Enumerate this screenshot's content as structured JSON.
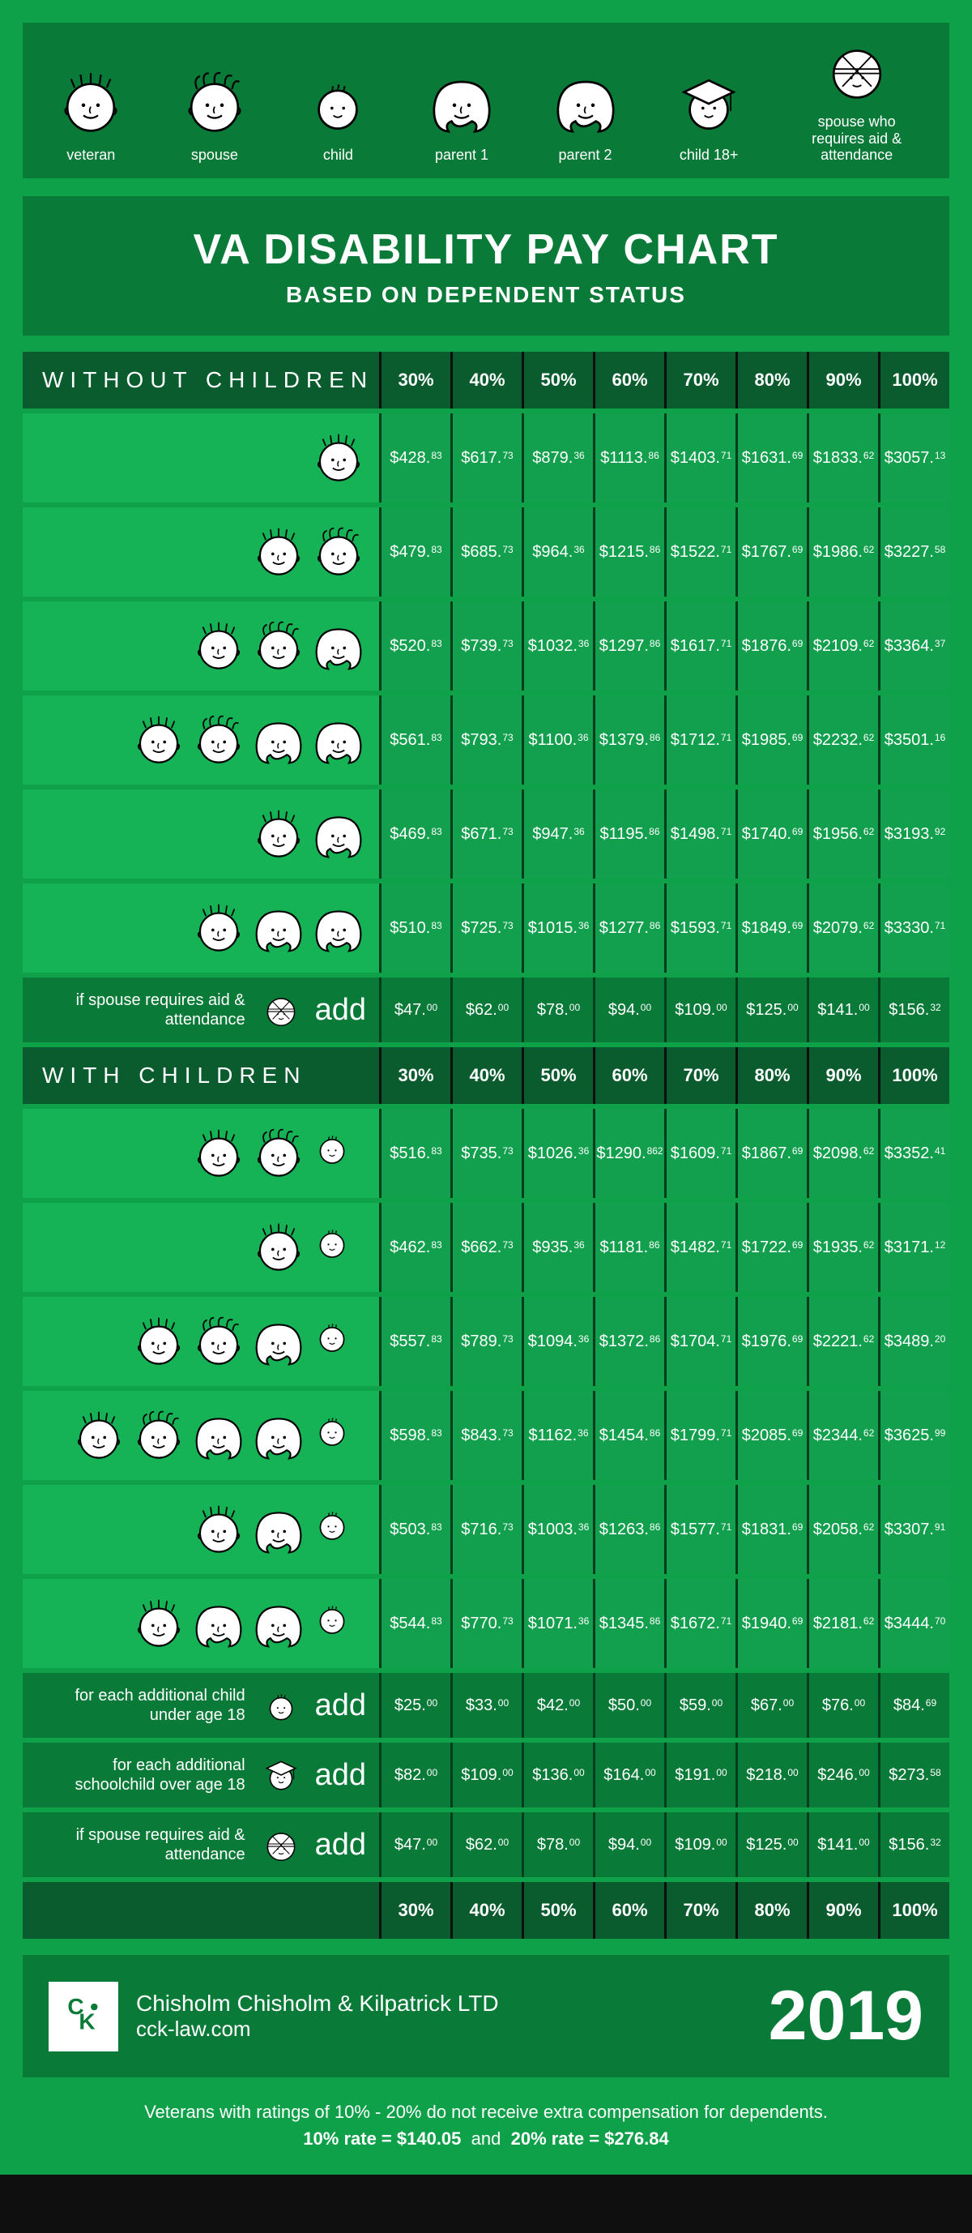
{
  "colors": {
    "page_bg": "#0fa14a",
    "dark_band": "#0a7a38",
    "header_dark": "#0a5c2e",
    "cell_bg": "#12a04e",
    "row_bg": "#16b256",
    "cell_sep": "#033d1c",
    "text": "#ffffff"
  },
  "legend": [
    {
      "key": "veteran",
      "label": "veteran"
    },
    {
      "key": "spouse",
      "label": "spouse"
    },
    {
      "key": "child",
      "label": "child"
    },
    {
      "key": "parent1",
      "label": "parent 1"
    },
    {
      "key": "parent2",
      "label": "parent 2"
    },
    {
      "key": "child18",
      "label": "child 18+"
    },
    {
      "key": "spouse_aa",
      "label": "spouse who requires aid & attendance"
    }
  ],
  "title": "VA DISABILITY PAY CHART",
  "subtitle": "BASED ON DEPENDENT STATUS",
  "percent_labels": [
    "30%",
    "40%",
    "50%",
    "60%",
    "70%",
    "80%",
    "90%",
    "100%"
  ],
  "sections": {
    "without": {
      "heading": "WITHOUT CHILDREN",
      "rows": [
        {
          "faces": [
            "veteran"
          ],
          "values": [
            [
              "428",
              "83"
            ],
            [
              "617",
              "73"
            ],
            [
              "879",
              "36"
            ],
            [
              "1113",
              "86"
            ],
            [
              "1403",
              "71"
            ],
            [
              "1631",
              "69"
            ],
            [
              "1833",
              "62"
            ],
            [
              "3057",
              "13"
            ]
          ]
        },
        {
          "faces": [
            "veteran",
            "spouse"
          ],
          "values": [
            [
              "479",
              "83"
            ],
            [
              "685",
              "73"
            ],
            [
              "964",
              "36"
            ],
            [
              "1215",
              "86"
            ],
            [
              "1522",
              "71"
            ],
            [
              "1767",
              "69"
            ],
            [
              "1986",
              "62"
            ],
            [
              "3227",
              "58"
            ]
          ]
        },
        {
          "faces": [
            "veteran",
            "spouse",
            "parent1"
          ],
          "values": [
            [
              "520",
              "83"
            ],
            [
              "739",
              "73"
            ],
            [
              "1032",
              "36"
            ],
            [
              "1297",
              "86"
            ],
            [
              "1617",
              "71"
            ],
            [
              "1876",
              "69"
            ],
            [
              "2109",
              "62"
            ],
            [
              "3364",
              "37"
            ]
          ]
        },
        {
          "faces": [
            "veteran",
            "spouse",
            "parent1",
            "parent2"
          ],
          "values": [
            [
              "561",
              "83"
            ],
            [
              "793",
              "73"
            ],
            [
              "1100",
              "36"
            ],
            [
              "1379",
              "86"
            ],
            [
              "1712",
              "71"
            ],
            [
              "1985",
              "69"
            ],
            [
              "2232",
              "62"
            ],
            [
              "3501",
              "16"
            ]
          ]
        },
        {
          "faces": [
            "veteran",
            "parent1"
          ],
          "values": [
            [
              "469",
              "83"
            ],
            [
              "671",
              "73"
            ],
            [
              "947",
              "36"
            ],
            [
              "1195",
              "86"
            ],
            [
              "1498",
              "71"
            ],
            [
              "1740",
              "69"
            ],
            [
              "1956",
              "62"
            ],
            [
              "3193",
              "92"
            ]
          ]
        },
        {
          "faces": [
            "veteran",
            "parent1",
            "parent2"
          ],
          "values": [
            [
              "510",
              "83"
            ],
            [
              "725",
              "73"
            ],
            [
              "1015",
              "36"
            ],
            [
              "1277",
              "86"
            ],
            [
              "1593",
              "71"
            ],
            [
              "1849",
              "69"
            ],
            [
              "2079",
              "62"
            ],
            [
              "3330",
              "71"
            ]
          ]
        }
      ],
      "add_rows": [
        {
          "note": "if spouse requires aid & attendance",
          "face": "spouse_aa",
          "label": "add",
          "values": [
            [
              "47",
              "00"
            ],
            [
              "62",
              "00"
            ],
            [
              "78",
              "00"
            ],
            [
              "94",
              "00"
            ],
            [
              "109",
              "00"
            ],
            [
              "125",
              "00"
            ],
            [
              "141",
              "00"
            ],
            [
              "156",
              "32"
            ]
          ]
        }
      ]
    },
    "with": {
      "heading": "WITH CHILDREN",
      "rows": [
        {
          "faces": [
            "veteran",
            "spouse",
            "child"
          ],
          "values": [
            [
              "516",
              "83"
            ],
            [
              "735",
              "73"
            ],
            [
              "1026",
              "36"
            ],
            [
              "1290",
              "862"
            ],
            [
              "1609",
              "71"
            ],
            [
              "1867",
              "69"
            ],
            [
              "2098",
              "62"
            ],
            [
              "3352",
              "41"
            ]
          ]
        },
        {
          "faces": [
            "veteran",
            "child"
          ],
          "values": [
            [
              "462",
              "83"
            ],
            [
              "662",
              "73"
            ],
            [
              "935",
              "36"
            ],
            [
              "1181",
              "86"
            ],
            [
              "1482",
              "71"
            ],
            [
              "1722",
              "69"
            ],
            [
              "1935",
              "62"
            ],
            [
              "3171",
              "12"
            ]
          ]
        },
        {
          "faces": [
            "veteran",
            "spouse",
            "parent1",
            "child"
          ],
          "values": [
            [
              "557",
              "83"
            ],
            [
              "789",
              "73"
            ],
            [
              "1094",
              "36"
            ],
            [
              "1372",
              "86"
            ],
            [
              "1704",
              "71"
            ],
            [
              "1976",
              "69"
            ],
            [
              "2221",
              "62"
            ],
            [
              "3489",
              "20"
            ]
          ]
        },
        {
          "faces": [
            "veteran",
            "spouse",
            "parent1",
            "parent2",
            "child"
          ],
          "values": [
            [
              "598",
              "83"
            ],
            [
              "843",
              "73"
            ],
            [
              "1162",
              "36"
            ],
            [
              "1454",
              "86"
            ],
            [
              "1799",
              "71"
            ],
            [
              "2085",
              "69"
            ],
            [
              "2344",
              "62"
            ],
            [
              "3625",
              "99"
            ]
          ]
        },
        {
          "faces": [
            "veteran",
            "parent1",
            "child"
          ],
          "values": [
            [
              "503",
              "83"
            ],
            [
              "716",
              "73"
            ],
            [
              "1003",
              "36"
            ],
            [
              "1263",
              "86"
            ],
            [
              "1577",
              "71"
            ],
            [
              "1831",
              "69"
            ],
            [
              "2058",
              "62"
            ],
            [
              "3307",
              "91"
            ]
          ]
        },
        {
          "faces": [
            "veteran",
            "parent1",
            "parent2",
            "child"
          ],
          "values": [
            [
              "544",
              "83"
            ],
            [
              "770",
              "73"
            ],
            [
              "1071",
              "36"
            ],
            [
              "1345",
              "86"
            ],
            [
              "1672",
              "71"
            ],
            [
              "1940",
              "69"
            ],
            [
              "2181",
              "62"
            ],
            [
              "3444",
              "70"
            ]
          ]
        }
      ],
      "add_rows": [
        {
          "note": "for each additional child under age 18",
          "face": "child",
          "label": "add",
          "values": [
            [
              "25",
              "00"
            ],
            [
              "33",
              "00"
            ],
            [
              "42",
              "00"
            ],
            [
              "50",
              "00"
            ],
            [
              "59",
              "00"
            ],
            [
              "67",
              "00"
            ],
            [
              "76",
              "00"
            ],
            [
              "84",
              "69"
            ]
          ]
        },
        {
          "note": "for each additional schoolchild over age 18",
          "face": "child18",
          "label": "add",
          "values": [
            [
              "82",
              "00"
            ],
            [
              "109",
              "00"
            ],
            [
              "136",
              "00"
            ],
            [
              "164",
              "00"
            ],
            [
              "191",
              "00"
            ],
            [
              "218",
              "00"
            ],
            [
              "246",
              "00"
            ],
            [
              "273",
              "58"
            ]
          ]
        },
        {
          "note": "if spouse requires aid & attendance",
          "face": "spouse_aa",
          "label": "add",
          "values": [
            [
              "47",
              "00"
            ],
            [
              "62",
              "00"
            ],
            [
              "78",
              "00"
            ],
            [
              "94",
              "00"
            ],
            [
              "109",
              "00"
            ],
            [
              "125",
              "00"
            ],
            [
              "141",
              "00"
            ],
            [
              "156",
              "32"
            ]
          ]
        }
      ]
    }
  },
  "footer": {
    "firm_line1": "Chisholm Chisholm & Kilpatrick LTD",
    "firm_line2": "cck-law.com",
    "year": "2019",
    "note_line1": "Veterans with ratings of 10% - 20% do not receive extra compensation for dependents.",
    "note_line2_a": "10% rate = $140.05",
    "note_line2_sep": "and",
    "note_line2_b": "20% rate = $276.84"
  }
}
